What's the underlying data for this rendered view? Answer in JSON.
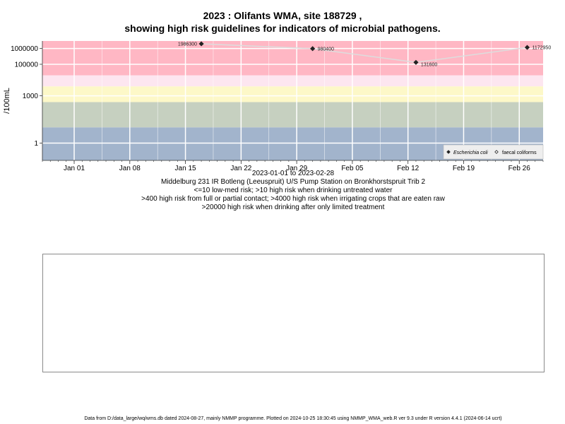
{
  "title": {
    "line1": "2023 : Olifants WMA, site 188729 ,",
    "line2": "showing high risk guidelines for indicators of microbial pathogens."
  },
  "captions": {
    "date_range": "2023-01-01 to 2023-02-28",
    "site": "Middelburg 231 IR Botleng (Leeuspruit) U/S Pump Station on Bronkhorstspruit Trib 2",
    "risk1": "<=10 low-med risk; >10 high risk when drinking untreated water",
    "risk2": ">400 high risk from full or partial contact; >4000 high risk when irrigating crops that are eaten raw",
    "risk3": ">20000 high risk when drinking after only limited treatment"
  },
  "footer": "Data from D:/data_large/wq/wms.db dated 2024-08-27, mainly NMMP programme. Plotted on 2024-10-25 18:30:45 using NMMP_WMA_web.R ver 9.3 under R version 4.4.1 (2024-06-14 ucrt)",
  "chart_data": {
    "type": "scatter",
    "ylabel": "/100mL",
    "y_scale": "log10",
    "ylim": [
      0.08,
      3000000
    ],
    "xlim": [
      "2022-12-28",
      "2023-03-01"
    ],
    "x_ticks": [
      {
        "date": "2023-01-01",
        "label": "Jan 01"
      },
      {
        "date": "2023-01-08",
        "label": "Jan 08"
      },
      {
        "date": "2023-01-15",
        "label": "Jan 15"
      },
      {
        "date": "2023-01-22",
        "label": "Jan 22"
      },
      {
        "date": "2023-01-29",
        "label": "Jan 29"
      },
      {
        "date": "2023-02-05",
        "label": "Feb 05"
      },
      {
        "date": "2023-02-12",
        "label": "Feb 12"
      },
      {
        "date": "2023-02-19",
        "label": "Feb 19"
      },
      {
        "date": "2023-02-26",
        "label": "Feb 26"
      }
    ],
    "y_ticks": [
      {
        "value": 1,
        "label": "1"
      },
      {
        "value": 1000,
        "label": "1000"
      },
      {
        "value": 100000,
        "label": "100000"
      },
      {
        "value": 1000000,
        "label": "1000000"
      }
    ],
    "grid": true,
    "bands": [
      {
        "from": 0.08,
        "to": 10,
        "color": "#a2b4cc"
      },
      {
        "from": 10,
        "to": 400,
        "color": "#c6d0c0"
      },
      {
        "from": 400,
        "to": 4000,
        "color": "#fdf8c8"
      },
      {
        "from": 4000,
        "to": 20000,
        "color": "#fde6f0"
      },
      {
        "from": 20000,
        "to": 3000000,
        "color": "#ffb7c4"
      }
    ],
    "series": [
      {
        "name": "Escherichia coli",
        "marker": "filled-diamond",
        "color": "#222222",
        "points": [
          {
            "x": "2023-01-17",
            "y": 1986300,
            "label": "1986300"
          },
          {
            "x": "2023-01-31",
            "y": 980400,
            "label": "980400"
          },
          {
            "x": "2023-02-13",
            "y": 131600,
            "label": "131600"
          },
          {
            "x": "2023-02-27",
            "y": 1172950,
            "label": "1172950"
          }
        ]
      },
      {
        "name": "faecal coliforms",
        "marker": "open-diamond",
        "color": "#222222",
        "points": []
      }
    ],
    "line_color": "#dddddd",
    "legend_position": "bottom-right"
  }
}
